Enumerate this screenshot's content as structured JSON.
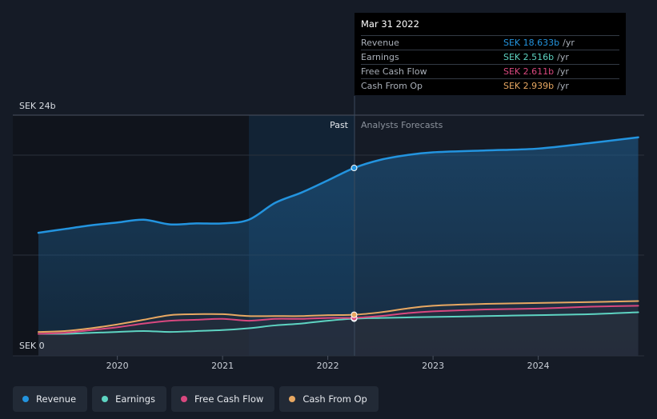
{
  "chart_data": {
    "type": "line",
    "y_top_label": "SEK 24b",
    "y_bottom_label": "SEK 0",
    "ylim": [
      0,
      24
    ],
    "x_ticks": [
      "2020",
      "2021",
      "2022",
      "2023",
      "2024"
    ],
    "past_label": "Past",
    "forecast_label": "Analysts Forecasts",
    "series": [
      {
        "name": "Revenue",
        "color": "#2394df",
        "points": [
          [
            2019.25,
            11.7
          ],
          [
            2019.5,
            12.1
          ],
          [
            2019.75,
            12.5
          ],
          [
            2020.0,
            12.8
          ],
          [
            2020.25,
            13.1
          ],
          [
            2020.5,
            12.6
          ],
          [
            2020.75,
            12.7
          ],
          [
            2021.0,
            12.7
          ],
          [
            2021.25,
            13.1
          ],
          [
            2021.5,
            14.9
          ],
          [
            2021.75,
            16.0
          ],
          [
            2022.0,
            17.3
          ],
          [
            2022.25,
            18.63
          ],
          [
            2022.5,
            19.5
          ],
          [
            2022.75,
            20.0
          ],
          [
            2023.0,
            20.3
          ],
          [
            2023.5,
            20.5
          ],
          [
            2024.0,
            20.7
          ],
          [
            2024.5,
            21.3
          ],
          [
            2024.95,
            21.9
          ]
        ]
      },
      {
        "name": "Earnings",
        "color": "#5ed4c2",
        "points": [
          [
            2019.25,
            0.9
          ],
          [
            2019.5,
            0.9
          ],
          [
            2019.75,
            1.0
          ],
          [
            2020.0,
            1.1
          ],
          [
            2020.25,
            1.2
          ],
          [
            2020.5,
            1.1
          ],
          [
            2020.75,
            1.2
          ],
          [
            2021.0,
            1.3
          ],
          [
            2021.25,
            1.5
          ],
          [
            2021.5,
            1.8
          ],
          [
            2021.75,
            2.0
          ],
          [
            2022.0,
            2.3
          ],
          [
            2022.25,
            2.516
          ],
          [
            2022.5,
            2.6
          ],
          [
            2023.0,
            2.7
          ],
          [
            2023.5,
            2.8
          ],
          [
            2024.0,
            2.9
          ],
          [
            2024.5,
            3.0
          ],
          [
            2024.95,
            3.2
          ]
        ]
      },
      {
        "name": "Free Cash Flow",
        "color": "#d9487f",
        "points": [
          [
            2019.25,
            0.9
          ],
          [
            2019.5,
            1.0
          ],
          [
            2019.75,
            1.3
          ],
          [
            2020.0,
            1.6
          ],
          [
            2020.25,
            2.0
          ],
          [
            2020.5,
            2.3
          ],
          [
            2020.75,
            2.4
          ],
          [
            2021.0,
            2.5
          ],
          [
            2021.25,
            2.3
          ],
          [
            2021.5,
            2.5
          ],
          [
            2021.75,
            2.5
          ],
          [
            2022.0,
            2.6
          ],
          [
            2022.25,
            2.611
          ],
          [
            2022.5,
            2.8
          ],
          [
            2022.75,
            3.1
          ],
          [
            2023.0,
            3.3
          ],
          [
            2023.5,
            3.5
          ],
          [
            2024.0,
            3.6
          ],
          [
            2024.5,
            3.8
          ],
          [
            2024.95,
            3.9
          ]
        ]
      },
      {
        "name": "Cash From Op",
        "color": "#e8a862",
        "points": [
          [
            2019.25,
            1.1
          ],
          [
            2019.5,
            1.2
          ],
          [
            2019.75,
            1.5
          ],
          [
            2020.0,
            1.9
          ],
          [
            2020.25,
            2.4
          ],
          [
            2020.5,
            2.9
          ],
          [
            2020.75,
            3.0
          ],
          [
            2021.0,
            3.0
          ],
          [
            2021.25,
            2.8
          ],
          [
            2021.5,
            2.8
          ],
          [
            2021.75,
            2.8
          ],
          [
            2022.0,
            2.9
          ],
          [
            2022.25,
            2.939
          ],
          [
            2022.5,
            3.2
          ],
          [
            2022.75,
            3.6
          ],
          [
            2023.0,
            3.9
          ],
          [
            2023.5,
            4.1
          ],
          [
            2024.0,
            4.2
          ],
          [
            2024.5,
            4.3
          ],
          [
            2024.95,
            4.4
          ]
        ]
      }
    ]
  },
  "tooltip": {
    "date": "Mar 31 2022",
    "rows": [
      {
        "label": "Revenue",
        "value": "SEK 18.633b",
        "unit": "/yr",
        "color": "#2394df"
      },
      {
        "label": "Earnings",
        "value": "SEK 2.516b",
        "unit": "/yr",
        "color": "#5ed4c2"
      },
      {
        "label": "Free Cash Flow",
        "value": "SEK 2.611b",
        "unit": "/yr",
        "color": "#d9487f"
      },
      {
        "label": "Cash From Op",
        "value": "SEK 2.939b",
        "unit": "/yr",
        "color": "#e8a862"
      }
    ]
  },
  "legend": [
    {
      "label": "Revenue",
      "color": "#2394df"
    },
    {
      "label": "Earnings",
      "color": "#5ed4c2"
    },
    {
      "label": "Free Cash Flow",
      "color": "#d9487f"
    },
    {
      "label": "Cash From Op",
      "color": "#e8a862"
    }
  ]
}
